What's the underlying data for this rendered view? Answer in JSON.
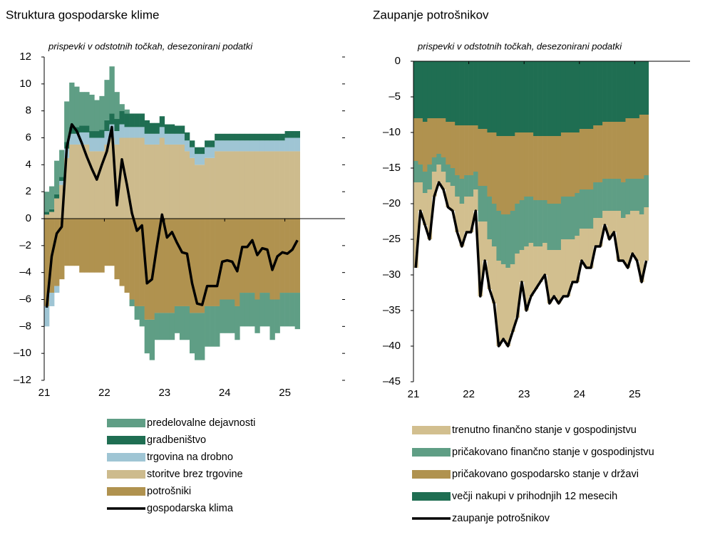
{
  "chart_data": [
    {
      "type": "bar",
      "title": "Struktura gospodarske klime",
      "subtitle": "prispevki v odstotnih točkah, desezonirani podatki",
      "x": [
        0,
        1,
        2,
        3,
        4,
        5,
        6,
        7,
        8,
        9,
        10,
        11,
        12,
        13,
        14,
        15,
        16,
        17,
        18,
        19,
        20,
        21,
        22,
        23,
        24,
        25,
        26,
        27,
        28,
        29,
        30,
        31,
        32,
        33,
        34,
        35,
        36,
        37,
        38,
        39,
        40,
        41,
        42,
        43,
        44,
        45,
        46,
        47,
        48,
        49,
        50
      ],
      "xlim": [
        0,
        60
      ],
      "xticks": [
        {
          "value": 0,
          "label": "21"
        },
        {
          "value": 12,
          "label": "22"
        },
        {
          "value": 24,
          "label": "23"
        },
        {
          "value": 36,
          "label": "24"
        },
        {
          "value": 48,
          "label": "25"
        }
      ],
      "ylim": [
        -12,
        12
      ],
      "yticks": [
        {
          "value": -12,
          "label": "–12"
        },
        {
          "value": -10,
          "label": "–10"
        },
        {
          "value": -8,
          "label": "–8"
        },
        {
          "value": -6,
          "label": "–6"
        },
        {
          "value": -4,
          "label": "–4"
        },
        {
          "value": -2,
          "label": "–2"
        },
        0,
        2,
        4,
        6,
        8,
        10,
        12
      ],
      "stack_order": [
        4,
        3,
        2,
        1,
        0
      ],
      "series": [
        {
          "name": "predelovalne dejavnosti",
          "color": "#5f9e85",
          "type": "bar",
          "values": [
            1.5,
            1.7,
            2.5,
            2,
            3,
            3.3,
            3,
            2.5,
            2.5,
            2.7,
            2.3,
            2.5,
            3,
            3.5,
            2,
            0.5,
            0.3,
            -0.5,
            -1,
            -1.5,
            -2.5,
            -3,
            -2,
            -2,
            -2,
            -2,
            -2,
            -2.5,
            -2.5,
            -3,
            -3.5,
            -3.5,
            -3,
            -3,
            -3,
            -2.5,
            -2.5,
            -2.5,
            -2.5,
            -2.5,
            -2.5,
            -2.5,
            -2.5,
            -2.5,
            -2.5,
            -3,
            -2.5,
            -2.5,
            -2.5,
            -2.5,
            -2.7
          ]
        },
        {
          "name": "gradbeništvo",
          "color": "#1f6e52",
          "type": "bar",
          "values": [
            0.2,
            0.2,
            0.3,
            0.3,
            0.5,
            0.5,
            0.5,
            0.5,
            0.5,
            0.5,
            0.5,
            0.6,
            0.8,
            0.8,
            0.9,
            1,
            1,
            1,
            1,
            1,
            1,
            0.8,
            0.8,
            0.8,
            0.7,
            0.7,
            0.6,
            0.6,
            0.6,
            0.5,
            0.5,
            0.5,
            0.5,
            0.5,
            0.5,
            0.5,
            0.5,
            0.5,
            0.5,
            0.5,
            0.5,
            0.5,
            0.5,
            0.5,
            0.5,
            0.5,
            0.5,
            0.5,
            0.5,
            0.5,
            0.5
          ]
        },
        {
          "name": "trgovina na drobno",
          "color": "#9fc5d4",
          "type": "bar",
          "values": [
            -1.5,
            -1,
            -0.5,
            0.3,
            0.7,
            0.8,
            0.8,
            0.9,
            0.9,
            1,
            1,
            1,
            1,
            1,
            1,
            1,
            0.8,
            0.8,
            0.8,
            0.8,
            0.8,
            0.8,
            0.8,
            0.8,
            0.8,
            0.8,
            0.8,
            0.8,
            0.8,
            0.8,
            0.8,
            0.8,
            0.8,
            0.8,
            0.8,
            0.8,
            0.8,
            0.8,
            0.8,
            0.8,
            0.8,
            0.8,
            0.8,
            0.8,
            0.8,
            0.8,
            0.8,
            0.8,
            1,
            1,
            1
          ]
        },
        {
          "name": "storitve brez trgovine",
          "color": "#cdbb8d",
          "type": "bar",
          "values": [
            0.3,
            0.5,
            1.5,
            2.5,
            4.5,
            5.5,
            5.5,
            5.5,
            5.5,
            5,
            5,
            5,
            5.5,
            6,
            5.5,
            6,
            6,
            6,
            6,
            6,
            5.5,
            5.5,
            5.5,
            6,
            5.5,
            5.5,
            5.5,
            5.5,
            5,
            4.5,
            4,
            4,
            4.5,
            4.5,
            5,
            5,
            5,
            5,
            5,
            5,
            5,
            5,
            5,
            5,
            5,
            5,
            5,
            5,
            5,
            5,
            5
          ]
        },
        {
          "name": "potrošniki",
          "color": "#b0924f",
          "type": "bar",
          "values": [
            -6.5,
            -5.5,
            -5,
            -4.5,
            -3.5,
            -3.5,
            -3.5,
            -4,
            -4,
            -4,
            -4,
            -4,
            -3.5,
            -3.5,
            -4.5,
            -5,
            -5.5,
            -6,
            -6.5,
            -6.5,
            -7.5,
            -7.5,
            -7,
            -7,
            -7,
            -7,
            -6.5,
            -6.5,
            -6.5,
            -7,
            -7,
            -7,
            -6.5,
            -6.5,
            -6.5,
            -6,
            -6,
            -6,
            -6.5,
            -5.5,
            -5.5,
            -5.5,
            -6,
            -5.5,
            -5.5,
            -6,
            -6,
            -5.5,
            -5.5,
            -5.5,
            -5.5
          ]
        },
        {
          "name": "gospodarska klima",
          "color": "#000000",
          "type": "line",
          "values": [
            -6.6,
            -2.8,
            -1.1,
            -0.6,
            5.3,
            7,
            6.5,
            5.6,
            4.6,
            3.7,
            2.9,
            4,
            5,
            6.8,
            1,
            4.4,
            2.5,
            0.4,
            -0.9,
            -0.5,
            -4.8,
            -4.5,
            -2,
            0.3,
            -1.4,
            -1,
            -1.8,
            -2.5,
            -2.6,
            -4.8,
            -6.3,
            -6.4,
            -5,
            -5,
            -5,
            -3.2,
            -3.1,
            -3.2,
            -3.9,
            -2.1,
            -2.1,
            -1.6,
            -2.7,
            -2.2,
            -2.3,
            -3.8,
            -2.8,
            -2.5,
            -2.6,
            -2.3,
            -1.6
          ]
        }
      ]
    },
    {
      "type": "bar",
      "title": "Zaupanje potrošnikov",
      "subtitle": "prispevki v odstotnih točkah, desezonirani podatki",
      "x": [
        0,
        1,
        2,
        3,
        4,
        5,
        6,
        7,
        8,
        9,
        10,
        11,
        12,
        13,
        14,
        15,
        16,
        17,
        18,
        19,
        20,
        21,
        22,
        23,
        24,
        25,
        26,
        27,
        28,
        29,
        30,
        31,
        32,
        33,
        34,
        35,
        36,
        37,
        38,
        39,
        40,
        41,
        42,
        43,
        44,
        45,
        46,
        47,
        48,
        49,
        50
      ],
      "xlim": [
        0,
        60
      ],
      "xticks": [
        {
          "value": 0,
          "label": "21"
        },
        {
          "value": 12,
          "label": "22"
        },
        {
          "value": 24,
          "label": "23"
        },
        {
          "value": 36,
          "label": "24"
        },
        {
          "value": 48,
          "label": "25"
        }
      ],
      "ylim": [
        -45,
        0
      ],
      "yticks": [
        {
          "value": -45,
          "label": "–45"
        },
        {
          "value": -40,
          "label": "–40"
        },
        {
          "value": -35,
          "label": "–35"
        },
        {
          "value": -30,
          "label": "–30"
        },
        {
          "value": -25,
          "label": "–25"
        },
        {
          "value": -20,
          "label": "–20"
        },
        {
          "value": -15,
          "label": "–15"
        },
        {
          "value": -10,
          "label": "–10"
        },
        {
          "value": -5,
          "label": "–5"
        },
        0
      ],
      "stack_order": [
        3,
        2,
        1,
        0
      ],
      "series": [
        {
          "name": "trenutno finančno stanje v gospodinjstvu",
          "color": "#d2bf8f",
          "type": "bar",
          "values": [
            -12,
            -4,
            -4.5,
            -7,
            -3.5,
            -2.5,
            -2.5,
            -3.5,
            -3.5,
            -5,
            -6,
            -5,
            -5,
            -3,
            -10.5,
            -5.5,
            -7,
            -8,
            -12,
            -10.5,
            -11,
            -9.5,
            -9,
            -4.5,
            -9,
            -7.5,
            -6,
            -5,
            -4.5,
            -7.5,
            -6.5,
            -7.5,
            -8,
            -8,
            -6,
            -6.5,
            -4.5,
            -5.5,
            -5.5,
            -4,
            -4,
            -2,
            -4,
            -3,
            -7,
            -6,
            -7.5,
            -6,
            -7,
            -9.5,
            -7.5
          ]
        },
        {
          "name": "pričakovano finančno stanje v gospodinjstvu",
          "color": "#5f9e85",
          "type": "bar",
          "values": [
            -3,
            -2.5,
            -3,
            -3.5,
            -2,
            -1.5,
            -2,
            -2.5,
            -2.5,
            -3,
            -3.5,
            -3,
            -3,
            -2.5,
            -5,
            -5,
            -6,
            -6,
            -7,
            -7,
            -7.5,
            -7.5,
            -7,
            -7,
            -7,
            -6.5,
            -6.5,
            -6.5,
            -6,
            -6.5,
            -6.5,
            -6.5,
            -6,
            -6,
            -6,
            -6,
            -5.5,
            -5.5,
            -5.5,
            -5,
            -5,
            -4.5,
            -4.5,
            -4.5,
            -4.5,
            -5,
            -5,
            -4.5,
            -4.5,
            -5,
            -4.5
          ]
        },
        {
          "name": "pričakovano gospodarsko stanje v državi",
          "color": "#b0924f",
          "type": "bar",
          "values": [
            -6,
            -6.5,
            -7,
            -6.5,
            -5.5,
            -5,
            -5.5,
            -6,
            -6.5,
            -7,
            -7.5,
            -7,
            -7,
            -6.5,
            -8,
            -8,
            -9,
            -10,
            -10.5,
            -11,
            -11,
            -10.5,
            -10,
            -9.5,
            -9,
            -9,
            -9,
            -9,
            -9,
            -9.5,
            -9.5,
            -9.5,
            -9,
            -9,
            -9,
            -8.5,
            -8.5,
            -8.5,
            -8.5,
            -8,
            -8,
            -8,
            -8,
            -8,
            -8,
            -8.5,
            -8.5,
            -8.5,
            -8.5,
            -9,
            -8.5
          ]
        },
        {
          "name": "večji nakupi v prihodnjih 12 mesecih",
          "color": "#1f6e52",
          "type": "bar",
          "values": [
            -8,
            -8,
            -8.5,
            -8,
            -8,
            -8,
            -8,
            -8.5,
            -8.5,
            -9,
            -9,
            -9,
            -9,
            -9,
            -9.5,
            -9.5,
            -10,
            -10,
            -10.5,
            -10.5,
            -10.5,
            -10.5,
            -10,
            -10,
            -10,
            -10,
            -10.5,
            -10.5,
            -10.5,
            -10.5,
            -10.5,
            -10.5,
            -10,
            -10,
            -10,
            -10,
            -9.5,
            -9.5,
            -9.5,
            -9,
            -9,
            -8.5,
            -8.5,
            -8.5,
            -8.5,
            -8.5,
            -8,
            -8,
            -8,
            -7.5,
            -7.5
          ]
        },
        {
          "name": "zaupanje potrošnikov",
          "color": "#000000",
          "type": "line",
          "values": [
            -29,
            -21,
            -23,
            -25,
            -19,
            -17,
            -18,
            -20.5,
            -21,
            -24,
            -26,
            -24,
            -24,
            -21,
            -33,
            -28,
            -32,
            -34,
            -40,
            -39,
            -40,
            -38,
            -36,
            -31,
            -35,
            -33,
            -32,
            -31,
            -30,
            -34,
            -33,
            -34,
            -33,
            -33,
            -31,
            -31,
            -28,
            -29,
            -29,
            -26,
            -26,
            -23,
            -25,
            -24,
            -28,
            -28,
            -29,
            -27,
            -28,
            -31,
            -28
          ]
        }
      ]
    }
  ]
}
